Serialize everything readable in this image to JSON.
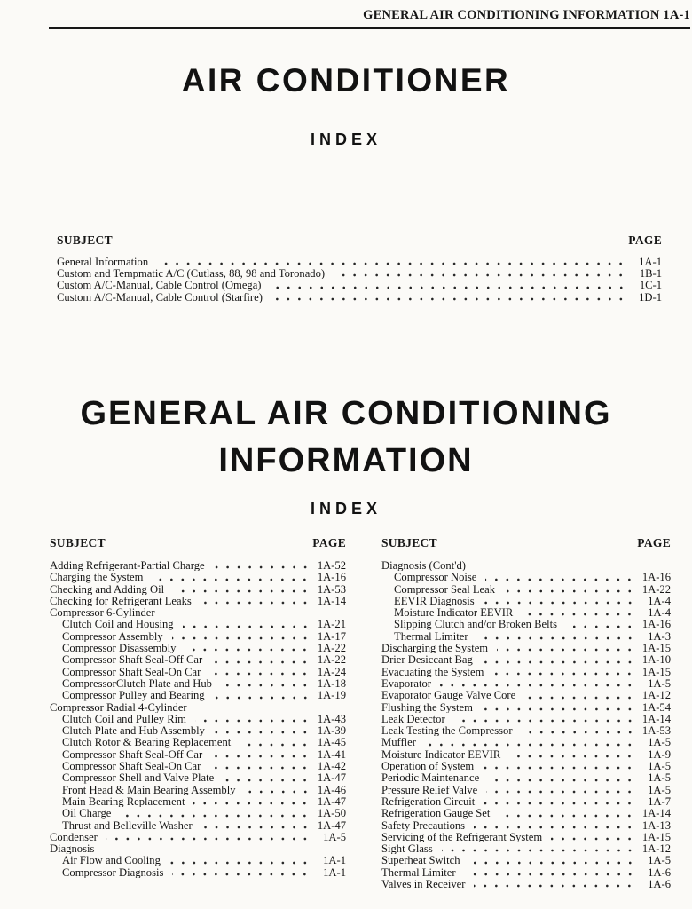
{
  "header": {
    "title": "GENERAL AIR CONDITIONING INFORMATION 1A-1"
  },
  "section1": {
    "title": "AIR CONDITIONER",
    "index_label": "INDEX",
    "columns": {
      "subject": "SUBJECT",
      "page": "PAGE"
    },
    "entries": [
      {
        "label": "General Information",
        "page": "1A-1",
        "indent": 0
      },
      {
        "label": "Custom and Tempmatic A/C (Cutlass, 88, 98 and Toronado)",
        "page": "1B-1",
        "indent": 0
      },
      {
        "label": "Custom A/C-Manual, Cable Control (Omega)",
        "page": "1C-1",
        "indent": 0
      },
      {
        "label": "Custom A/C-Manual, Cable Control (Starfire)",
        "page": "1D-1",
        "indent": 0
      }
    ]
  },
  "section2": {
    "title_line1": "GENERAL AIR CONDITIONING",
    "title_line2": "INFORMATION",
    "index_label": "INDEX",
    "left": {
      "columns": {
        "subject": "SUBJECT",
        "page": "PAGE"
      },
      "entries": [
        {
          "label": "Adding Refrigerant-Partial Charge",
          "page": "1A-52",
          "indent": 0
        },
        {
          "label": "Charging the System",
          "page": "1A-16",
          "indent": 0
        },
        {
          "label": "Checking and Adding Oil",
          "page": "1A-53",
          "indent": 0
        },
        {
          "label": "Checking for Refrigerant Leaks",
          "page": "1A-14",
          "indent": 0
        },
        {
          "label": "Compressor 6-Cylinder",
          "page": "",
          "indent": 0
        },
        {
          "label": "Clutch Coil and Housing",
          "page": "1A-21",
          "indent": 1
        },
        {
          "label": "Compressor Assembly",
          "page": "1A-17",
          "indent": 1
        },
        {
          "label": "Compressor Disassembly",
          "page": "1A-22",
          "indent": 1
        },
        {
          "label": "Compressor Shaft Seal-Off Car",
          "page": "1A-22",
          "indent": 1
        },
        {
          "label": "Compressor Shaft Seal-On Car",
          "page": "1A-24",
          "indent": 1
        },
        {
          "label": "CompressorClutch Plate and Hub",
          "page": "1A-18",
          "indent": 1
        },
        {
          "label": "Compressor Pulley and Bearing",
          "page": "1A-19",
          "indent": 1
        },
        {
          "label": "Compressor Radial 4-Cylinder",
          "page": "",
          "indent": 0
        },
        {
          "label": "Clutch Coil and Pulley Rim",
          "page": "1A-43",
          "indent": 1
        },
        {
          "label": "Clutch Plate and Hub Assembly",
          "page": "1A-39",
          "indent": 1
        },
        {
          "label": "Clutch Rotor & Bearing Replacement",
          "page": "1A-45",
          "indent": 1
        },
        {
          "label": "Compressor Shaft Seal-Off Car",
          "page": "1A-41",
          "indent": 1
        },
        {
          "label": "Compressor Shaft Seal-On Car",
          "page": "1A-42",
          "indent": 1
        },
        {
          "label": "Compressor Shell and Valve Plate",
          "page": "1A-47",
          "indent": 1
        },
        {
          "label": "Front Head & Main Bearing Assembly",
          "page": "1A-46",
          "indent": 1
        },
        {
          "label": "Main Bearing Replacement",
          "page": "1A-47",
          "indent": 1
        },
        {
          "label": "Oil Charge",
          "page": "1A-50",
          "indent": 1
        },
        {
          "label": "Thrust and Belleville Washer",
          "page": "1A-47",
          "indent": 1
        },
        {
          "label": "Condenser",
          "page": "1A-5",
          "indent": 0
        },
        {
          "label": "Diagnosis",
          "page": "",
          "indent": 0
        },
        {
          "label": "Air Flow and Cooling",
          "page": "1A-1",
          "indent": 1
        },
        {
          "label": "Compressor Diagnosis",
          "page": "1A-1",
          "indent": 1
        }
      ]
    },
    "right": {
      "columns": {
        "subject": "SUBJECT",
        "page": "PAGE"
      },
      "entries": [
        {
          "label": "Diagnosis (Cont'd)",
          "page": "",
          "indent": 0
        },
        {
          "label": "Compressor Noise",
          "page": "1A-16",
          "indent": 1
        },
        {
          "label": "Compressor Seal Leak",
          "page": "1A-22",
          "indent": 1
        },
        {
          "label": "EEVIR Diagnosis",
          "page": "1A-4",
          "indent": 1
        },
        {
          "label": "Moisture Indicator EEVIR",
          "page": "1A-4",
          "indent": 1
        },
        {
          "label": "Slipping Clutch and/or Broken Belts",
          "page": "1A-16",
          "indent": 1
        },
        {
          "label": "Thermal Limiter",
          "page": "1A-3",
          "indent": 1
        },
        {
          "label": "Discharging the System",
          "page": "1A-15",
          "indent": 0
        },
        {
          "label": "Drier Desiccant Bag",
          "page": "1A-10",
          "indent": 0
        },
        {
          "label": "Evacuating the System",
          "page": "1A-15",
          "indent": 0
        },
        {
          "label": "Evaporator",
          "page": "1A-5",
          "indent": 0
        },
        {
          "label": "Evaporator Gauge Valve Core",
          "page": "1A-12",
          "indent": 0
        },
        {
          "label": "Flushing the System",
          "page": "1A-54",
          "indent": 0
        },
        {
          "label": "Leak Detector",
          "page": "1A-14",
          "indent": 0
        },
        {
          "label": "Leak Testing the Compressor",
          "page": "1A-53",
          "indent": 0
        },
        {
          "label": "Muffler",
          "page": "1A-5",
          "indent": 0
        },
        {
          "label": "Moisture Indicator EEVIR",
          "page": "1A-9",
          "indent": 0
        },
        {
          "label": "Operation of System",
          "page": "1A-5",
          "indent": 0
        },
        {
          "label": "Periodic Maintenance",
          "page": "1A-5",
          "indent": 0
        },
        {
          "label": "Pressure Relief Valve",
          "page": "1A-5",
          "indent": 0
        },
        {
          "label": "Refrigeration Circuit",
          "page": "1A-7",
          "indent": 0
        },
        {
          "label": "Refrigeration Gauge Set",
          "page": "1A-14",
          "indent": 0
        },
        {
          "label": "Safety Precautions",
          "page": "1A-13",
          "indent": 0
        },
        {
          "label": "Servicing of the Refrigerant System",
          "page": "1A-15",
          "indent": 0
        },
        {
          "label": "Sight Glass",
          "page": "1A-12",
          "indent": 0
        },
        {
          "label": "Superheat Switch",
          "page": "1A-5",
          "indent": 0
        },
        {
          "label": "Thermal Limiter",
          "page": "1A-6",
          "indent": 0
        },
        {
          "label": "Valves in Receiver",
          "page": "1A-6",
          "indent": 0
        }
      ]
    }
  }
}
